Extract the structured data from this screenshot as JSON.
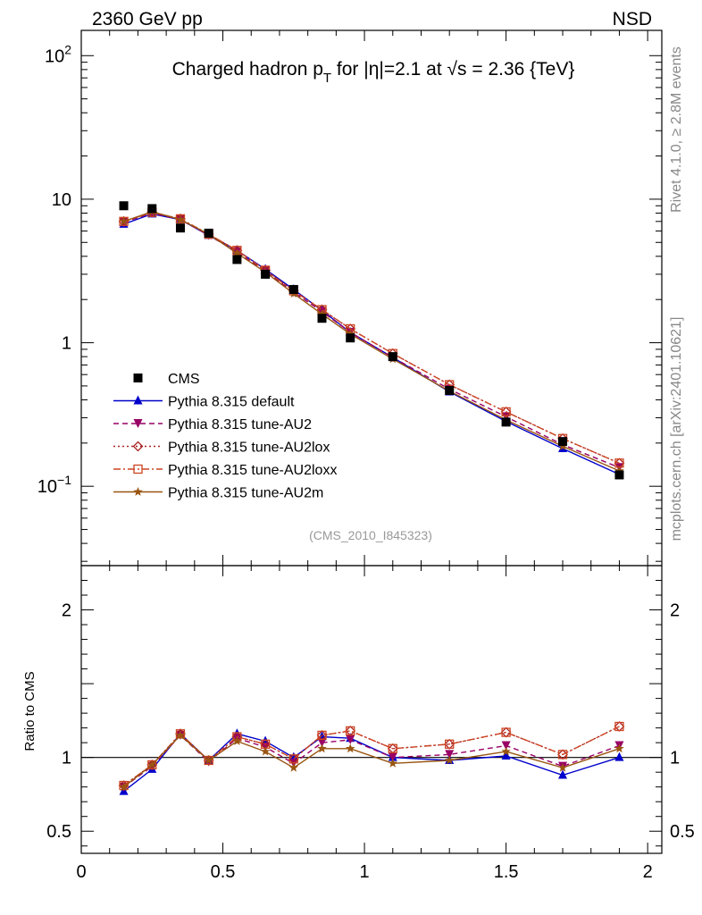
{
  "header": {
    "left": "2360 GeV pp",
    "right": "NSD"
  },
  "side_labels": {
    "rivet": "Rivet 4.1.0, ≥ 2.8M events",
    "mcplots": "mcplots.cern.ch [arXiv:2401.10621]"
  },
  "chart_data": {
    "type": "line",
    "title": "Charged hadron p_T for |η|=2.1 at √s = 2.36 {TeV}",
    "title_parts": {
      "before_sub": "Charged hadron p",
      "sub": "T",
      "after_sub": " for |η|=2.1 at √s = 2.36 {TeV}"
    },
    "analysis_id": "(CMS_2010_I845323)",
    "xlim": [
      0,
      2.05
    ],
    "x_ticks": [
      "0",
      "0.5",
      "1",
      "1.5",
      "2"
    ],
    "x_tick_values": [
      0,
      0.5,
      1,
      1.5,
      2
    ],
    "x": [
      0.15,
      0.25,
      0.35,
      0.45,
      0.55,
      0.65,
      0.75,
      0.85,
      0.95,
      1.1,
      1.3,
      1.5,
      1.7,
      1.9
    ],
    "main": {
      "yscale": "log",
      "ylim": [
        0.028,
        150
      ],
      "y_ticks": [
        {
          "value": 100,
          "base": "10",
          "exp": "2"
        },
        {
          "value": 10,
          "base": "10",
          "exp": ""
        },
        {
          "value": 1,
          "base": "1",
          "exp": ""
        },
        {
          "value": 0.1,
          "base": "10",
          "exp": "−1"
        }
      ]
    },
    "ratio": {
      "ylabel": "Ratio to CMS",
      "ylim": [
        0.35,
        2.3
      ],
      "y_ticks": [
        {
          "value": 0.5,
          "label": "0.5"
        },
        {
          "value": 1,
          "label": "1"
        },
        {
          "value": 2,
          "label": "2"
        }
      ]
    },
    "legend_position": "lower-left",
    "series": [
      {
        "name": "CMS",
        "color": "#000000",
        "marker": "square",
        "line": "none",
        "values": [
          9.0,
          8.6,
          6.3,
          5.8,
          3.8,
          3.0,
          2.35,
          1.48,
          1.08,
          0.8,
          0.465,
          0.28,
          0.205,
          0.12
        ],
        "ratio": [
          1,
          1,
          1,
          1,
          1,
          1,
          1,
          1,
          1,
          1,
          1,
          1,
          1,
          1
        ]
      },
      {
        "name": "Pythia 8.315 default",
        "color": "#0000cc",
        "marker": "triangle-up",
        "line": "solid",
        "values": [
          6.7,
          7.9,
          7.2,
          5.6,
          4.4,
          3.25,
          2.35,
          1.68,
          1.18,
          0.79,
          0.455,
          0.283,
          0.183,
          0.121
        ],
        "ratio": [
          0.77,
          0.92,
          1.16,
          0.98,
          1.16,
          1.11,
          1.0,
          1.14,
          1.13,
          1.0,
          0.98,
          1.01,
          0.88,
          1.0
        ]
      },
      {
        "name": "Pythia 8.315 tune-AU2",
        "color": "#990066",
        "marker": "triangle-down",
        "line": "dashed",
        "values": [
          6.9,
          8.0,
          7.2,
          5.6,
          4.3,
          3.15,
          2.25,
          1.65,
          1.18,
          0.79,
          0.475,
          0.305,
          0.195,
          0.135
        ],
        "ratio": [
          0.8,
          0.94,
          1.15,
          0.97,
          1.13,
          1.07,
          0.96,
          1.1,
          1.12,
          1.0,
          1.02,
          1.08,
          0.94,
          1.08
        ]
      },
      {
        "name": "Pythia 8.315 tune-AU2lox",
        "color": "#aa2222",
        "marker": "diamond-open",
        "line": "dotted",
        "values": [
          7.0,
          8.1,
          7.3,
          5.7,
          4.4,
          3.2,
          2.3,
          1.7,
          1.25,
          0.84,
          0.51,
          0.33,
          0.215,
          0.145
        ],
        "ratio": [
          0.81,
          0.95,
          1.16,
          0.98,
          1.14,
          1.09,
          0.99,
          1.15,
          1.18,
          1.06,
          1.09,
          1.17,
          1.02,
          1.21
        ]
      },
      {
        "name": "Pythia 8.315 tune-AU2loxx",
        "color": "#cc4422",
        "marker": "square-open",
        "line": "dashdot",
        "values": [
          7.0,
          8.1,
          7.3,
          5.7,
          4.4,
          3.2,
          2.3,
          1.7,
          1.25,
          0.84,
          0.51,
          0.33,
          0.215,
          0.145
        ],
        "ratio": [
          0.81,
          0.95,
          1.16,
          0.98,
          1.14,
          1.09,
          0.99,
          1.15,
          1.18,
          1.06,
          1.09,
          1.17,
          1.02,
          1.21
        ]
      },
      {
        "name": "Pythia 8.315 tune-AU2m",
        "color": "#995511",
        "marker": "star",
        "line": "solid",
        "values": [
          7.0,
          8.2,
          7.2,
          5.7,
          4.2,
          3.1,
          2.2,
          1.58,
          1.15,
          0.77,
          0.46,
          0.29,
          0.19,
          0.128
        ],
        "ratio": [
          0.8,
          0.95,
          1.15,
          0.98,
          1.11,
          1.04,
          0.93,
          1.06,
          1.06,
          0.96,
          0.98,
          1.04,
          0.93,
          1.06
        ]
      }
    ]
  }
}
